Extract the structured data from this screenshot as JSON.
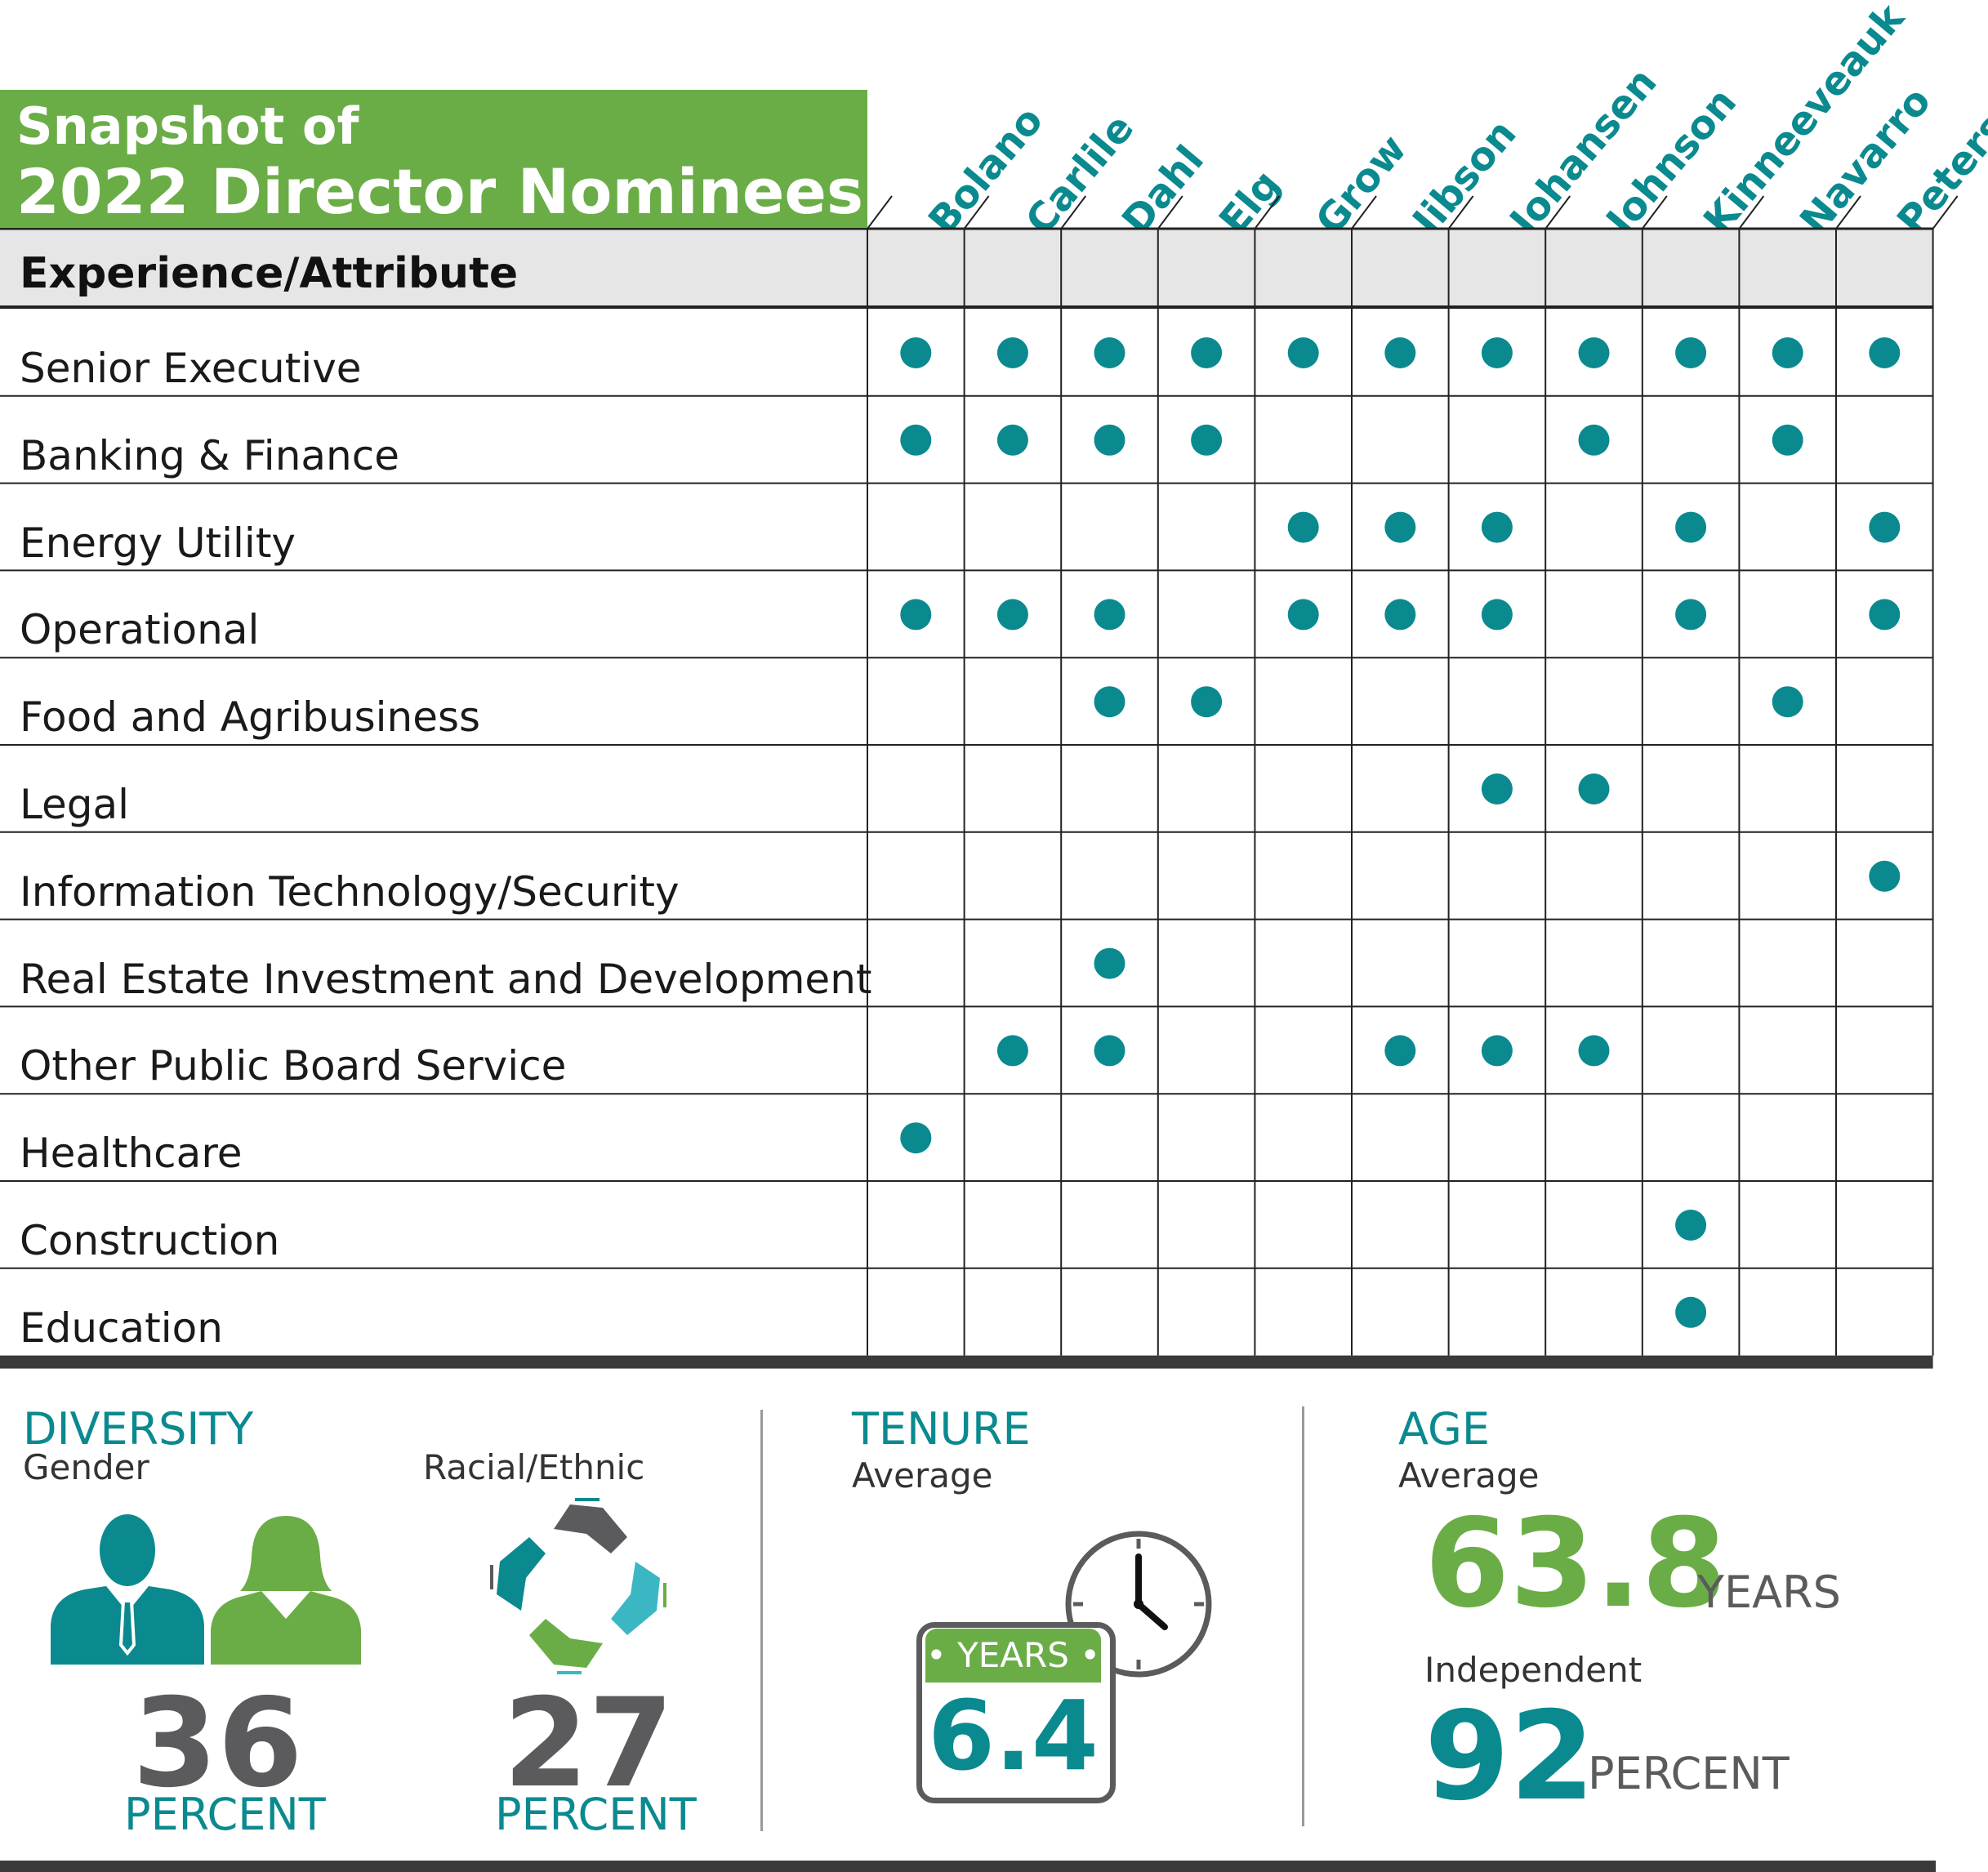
{
  "title": {
    "line1": "Snapshot of",
    "line2": "2022 Director Nominees"
  },
  "table": {
    "header_label": "Experience/Attribute",
    "nominees": [
      "Bolano",
      "Carlile",
      "Dahl",
      "Elg",
      "Grow",
      "Jibson",
      "Johansen",
      "Johnson",
      "Kinneeveauk",
      "Navarro",
      "Peters"
    ],
    "rows": [
      {
        "label": "Senior Executive",
        "marks": [
          1,
          1,
          1,
          1,
          1,
          1,
          1,
          1,
          1,
          1,
          1
        ]
      },
      {
        "label": "Banking & Finance",
        "marks": [
          1,
          1,
          1,
          1,
          0,
          0,
          0,
          1,
          0,
          1,
          0
        ]
      },
      {
        "label": "Energy Utility",
        "marks": [
          0,
          0,
          0,
          0,
          1,
          1,
          1,
          0,
          1,
          0,
          1
        ]
      },
      {
        "label": "Operational",
        "marks": [
          1,
          1,
          1,
          0,
          1,
          1,
          1,
          0,
          1,
          0,
          1
        ]
      },
      {
        "label": "Food and Agribusiness",
        "marks": [
          0,
          0,
          1,
          1,
          0,
          0,
          0,
          0,
          0,
          1,
          0
        ]
      },
      {
        "label": "Legal",
        "marks": [
          0,
          0,
          0,
          0,
          0,
          0,
          1,
          1,
          0,
          0,
          0
        ]
      },
      {
        "label": "Information Technology/Security",
        "marks": [
          0,
          0,
          0,
          0,
          0,
          0,
          0,
          0,
          0,
          0,
          1
        ]
      },
      {
        "label": "Real Estate Investment and Development",
        "marks": [
          0,
          0,
          1,
          0,
          0,
          0,
          0,
          0,
          0,
          0,
          0
        ]
      },
      {
        "label": "Other Public Board Service",
        "marks": [
          0,
          1,
          1,
          0,
          0,
          1,
          1,
          1,
          0,
          0,
          0
        ]
      },
      {
        "label": "Healthcare",
        "marks": [
          1,
          0,
          0,
          0,
          0,
          0,
          0,
          0,
          0,
          0,
          0
        ]
      },
      {
        "label": "Construction",
        "marks": [
          0,
          0,
          0,
          0,
          0,
          0,
          0,
          0,
          1,
          0,
          0
        ]
      },
      {
        "label": "Education",
        "marks": [
          0,
          0,
          0,
          0,
          0,
          0,
          0,
          0,
          1,
          0,
          0
        ]
      }
    ]
  },
  "diversity": {
    "heading": "DIVERSITY",
    "gender_label": "Gender",
    "gender_value": "36",
    "gender_unit": "PERCENT",
    "racial_label": "Racial/Ethnic",
    "racial_value": "27",
    "racial_unit": "PERCENT"
  },
  "tenure": {
    "heading": "TENURE",
    "sub": "Average",
    "badge_label": "• YEARS •",
    "value": "6.4"
  },
  "age": {
    "heading": "AGE",
    "sub": "Average",
    "value": "63.8",
    "unit": "YEARS",
    "independent_label": "Independent",
    "independent_value": "92",
    "independent_unit": "PERCENT"
  },
  "colors": {
    "teal": "#0a8a8f",
    "green": "#6aad47",
    "gray": "#5b5b5d",
    "header_bg": "#e6e6e6"
  }
}
